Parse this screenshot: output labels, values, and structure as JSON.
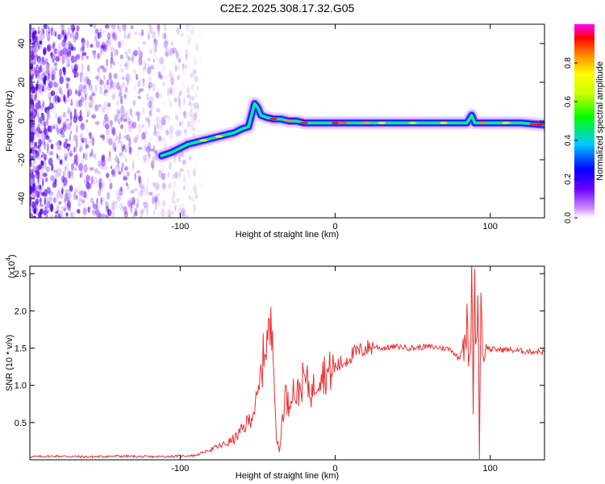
{
  "figure": {
    "title": "C2E2.2025.308.17.32.G05"
  },
  "chart_data": [
    {
      "type": "heatmap",
      "name": "spectrogram",
      "title": "C2E2.2025.308.17.32.G05",
      "xlabel": "Height of straight line (km)",
      "ylabel": "Frequency (Hz)",
      "xlim": [
        -197,
        135
      ],
      "ylim": [
        -50,
        50
      ],
      "xticks": [
        -100,
        0,
        100
      ],
      "yticks": [
        -40,
        -20,
        0,
        20,
        40
      ],
      "ridge": {
        "x": [
          -112,
          -105,
          -100,
          -95,
          -90,
          -85,
          -80,
          -75,
          -70,
          -65,
          -60,
          -56,
          -52,
          -50,
          -48,
          -45,
          -40,
          -35,
          -30,
          -25,
          -20,
          -15,
          -10,
          0,
          10,
          30,
          60,
          85,
          88,
          90,
          93,
          100,
          120,
          135
        ],
        "y": [
          -18,
          -16,
          -14,
          -12,
          -11,
          -10,
          -9,
          -8,
          -7,
          -6,
          -4,
          -3,
          9,
          7,
          3,
          2,
          1,
          1,
          0,
          0,
          -1,
          -1,
          -1,
          -1,
          -1,
          -1,
          -1,
          -1,
          3,
          -1,
          -1,
          -1,
          -1,
          -2
        ]
      },
      "colorbar": {
        "label": "Normalized spectral amplitude",
        "range": [
          0,
          1
        ],
        "ticks": [
          "0.0",
          "0.2",
          "0.4",
          "0.6",
          "0.8"
        ],
        "colors": [
          "#ffffff",
          "#cc88ff",
          "#6a00ff",
          "#0000ff",
          "#00c8ff",
          "#00ff00",
          "#c8ff00",
          "#ffff00",
          "#ff8800",
          "#ff0000",
          "#ff00ff"
        ]
      }
    },
    {
      "type": "line",
      "name": "snr",
      "xlabel": "Height of straight line (km)",
      "ylabel": "SNR (10 * v/v)",
      "yscale_label": "(x10",
      "yscale_exp": "4",
      "xlim": [
        -197,
        135
      ],
      "ylim": [
        0,
        2.6
      ],
      "xticks": [
        -100,
        0,
        100
      ],
      "yticks": [
        0.5,
        1.0,
        1.5,
        2.0,
        2.5
      ],
      "ytick_labels": [
        "0.5",
        "1.0",
        "1.5",
        "2.0",
        "2.5"
      ],
      "line_color": "#e83030",
      "series": [
        {
          "name": "SNR",
          "x": [
            -197,
            -180,
            -160,
            -140,
            -120,
            -100,
            -90,
            -85,
            -80,
            -75,
            -70,
            -65,
            -60,
            -55,
            -50,
            -45,
            -40,
            -38,
            -36,
            -34,
            -32,
            -30,
            -28,
            -25,
            -20,
            -15,
            -10,
            -5,
            0,
            5,
            10,
            15,
            20,
            25,
            30,
            40,
            50,
            60,
            70,
            75,
            80,
            85,
            87,
            88,
            89,
            90,
            91,
            92,
            93,
            94,
            95,
            96,
            100,
            110,
            120,
            135
          ],
          "y": [
            0.04,
            0.05,
            0.04,
            0.05,
            0.04,
            0.05,
            0.06,
            0.1,
            0.14,
            0.18,
            0.22,
            0.28,
            0.4,
            0.55,
            0.8,
            1.6,
            1.75,
            0.3,
            0.1,
            0.6,
            0.9,
            0.7,
            1.0,
            0.85,
            1.1,
            0.9,
            1.2,
            1.15,
            1.25,
            1.3,
            1.4,
            1.45,
            1.5,
            1.52,
            1.5,
            1.52,
            1.5,
            1.52,
            1.5,
            1.48,
            1.35,
            1.8,
            1.1,
            2.5,
            0.9,
            2.45,
            1.3,
            2.55,
            0.05,
            2.5,
            1.3,
            1.55,
            1.48,
            1.48,
            1.46,
            1.45
          ]
        }
      ]
    }
  ]
}
